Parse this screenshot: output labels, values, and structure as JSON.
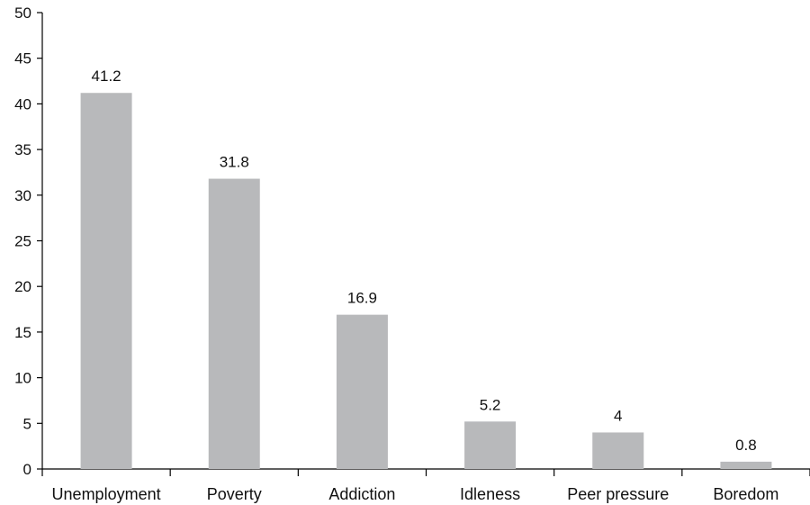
{
  "chart_data": {
    "type": "bar",
    "categories": [
      "Unemployment",
      "Poverty",
      "Addiction",
      "Idleness",
      "Peer pressure",
      "Boredom"
    ],
    "values": [
      41.2,
      31.8,
      16.9,
      5.2,
      4,
      0.8
    ],
    "data_labels": [
      "41.2",
      "31.8",
      "16.9",
      "5.2",
      "4",
      "0.8"
    ],
    "ylim": [
      0,
      50
    ],
    "yticks": [
      0,
      5,
      10,
      15,
      20,
      25,
      30,
      35,
      40,
      45,
      50
    ],
    "grid": false,
    "legend": "none",
    "bar_color": "#b8b9bb",
    "title": "",
    "xlabel": "",
    "ylabel": ""
  }
}
